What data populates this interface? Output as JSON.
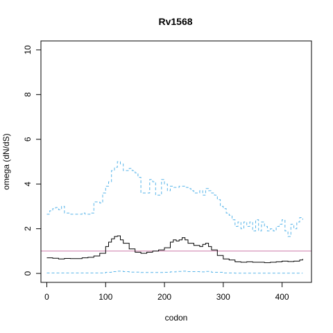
{
  "chart_data": {
    "type": "line",
    "title": "Rv1568",
    "xlabel": "codon",
    "ylabel": "omega (dN/dS)",
    "xlim": [
      -10,
      450
    ],
    "ylim": [
      -0.4,
      10.4
    ],
    "xticks": [
      0,
      100,
      200,
      300,
      400
    ],
    "yticks": [
      0,
      2,
      4,
      6,
      8,
      10
    ],
    "grid": false,
    "reference_line": {
      "y": 1,
      "color": "#CC79A7"
    },
    "series": [
      {
        "style": "dashed",
        "color": "#56B4E9",
        "x": [
          0,
          5,
          10,
          15,
          20,
          25,
          30,
          35,
          40,
          45,
          50,
          55,
          60,
          65,
          70,
          75,
          80,
          85,
          90,
          95,
          100,
          105,
          110,
          115,
          120,
          125,
          130,
          135,
          140,
          145,
          150,
          155,
          160,
          165,
          170,
          175,
          180,
          185,
          190,
          195,
          200,
          205,
          210,
          215,
          220,
          225,
          230,
          235,
          240,
          245,
          250,
          255,
          260,
          265,
          270,
          275,
          280,
          285,
          290,
          295,
          300,
          305,
          310,
          315,
          320,
          325,
          330,
          335,
          340,
          345,
          350,
          355,
          360,
          365,
          370,
          375,
          380,
          385,
          390,
          395,
          400,
          405,
          410,
          415,
          420,
          425,
          430,
          435
        ],
        "y": [
          2.65,
          2.8,
          2.9,
          2.95,
          2.85,
          3.0,
          2.7,
          2.7,
          2.65,
          2.65,
          2.65,
          2.65,
          2.7,
          2.65,
          2.65,
          2.7,
          3.2,
          3.2,
          3.15,
          3.6,
          3.9,
          4.1,
          4.6,
          4.75,
          5.0,
          4.9,
          4.6,
          4.6,
          4.7,
          4.6,
          4.5,
          4.3,
          3.6,
          3.6,
          3.6,
          4.2,
          4.1,
          3.5,
          3.5,
          4.2,
          4.0,
          3.7,
          3.9,
          3.85,
          3.85,
          3.9,
          3.9,
          3.85,
          3.8,
          3.7,
          3.6,
          3.6,
          3.7,
          3.5,
          3.8,
          3.7,
          3.6,
          3.5,
          3.3,
          3.0,
          2.9,
          2.7,
          2.6,
          2.4,
          2.1,
          2.3,
          2.0,
          2.3,
          2.1,
          2.3,
          1.9,
          2.4,
          1.9,
          2.3,
          2.1,
          1.9,
          2.0,
          1.9,
          2.1,
          2.2,
          2.4,
          1.9,
          1.65,
          2.2,
          2.0,
          2.3,
          2.5,
          2.4
        ]
      },
      {
        "style": "solid",
        "color": "#000000",
        "x": [
          0,
          10,
          20,
          30,
          40,
          50,
          60,
          70,
          80,
          90,
          100,
          105,
          110,
          115,
          120,
          125,
          130,
          140,
          150,
          160,
          170,
          180,
          190,
          200,
          210,
          215,
          220,
          225,
          230,
          235,
          240,
          250,
          260,
          265,
          270,
          275,
          280,
          290,
          300,
          310,
          320,
          330,
          340,
          350,
          360,
          370,
          380,
          390,
          400,
          410,
          420,
          430,
          435
        ],
        "y": [
          0.7,
          0.68,
          0.65,
          0.67,
          0.66,
          0.66,
          0.7,
          0.72,
          0.78,
          0.9,
          1.2,
          1.4,
          1.55,
          1.65,
          1.68,
          1.5,
          1.35,
          1.1,
          0.95,
          0.9,
          0.95,
          1.0,
          1.05,
          1.15,
          1.4,
          1.5,
          1.45,
          1.5,
          1.6,
          1.5,
          1.35,
          1.25,
          1.2,
          1.3,
          1.35,
          1.2,
          1.05,
          0.8,
          0.65,
          0.6,
          0.52,
          0.5,
          0.52,
          0.5,
          0.5,
          0.48,
          0.5,
          0.52,
          0.55,
          0.53,
          0.55,
          0.6,
          0.65
        ]
      },
      {
        "style": "dashed",
        "color": "#56B4E9",
        "x": [
          0,
          20,
          40,
          60,
          80,
          100,
          110,
          120,
          130,
          140,
          160,
          180,
          200,
          210,
          220,
          230,
          240,
          260,
          270,
          280,
          300,
          320,
          340,
          360,
          380,
          400,
          420,
          435
        ],
        "y": [
          0.02,
          0.02,
          0.02,
          0.02,
          0.02,
          0.05,
          0.08,
          0.1,
          0.08,
          0.06,
          0.04,
          0.04,
          0.05,
          0.07,
          0.09,
          0.1,
          0.08,
          0.07,
          0.09,
          0.05,
          0.02,
          0.01,
          0.01,
          0.01,
          0.01,
          0.01,
          0.01,
          0.01
        ]
      }
    ]
  }
}
